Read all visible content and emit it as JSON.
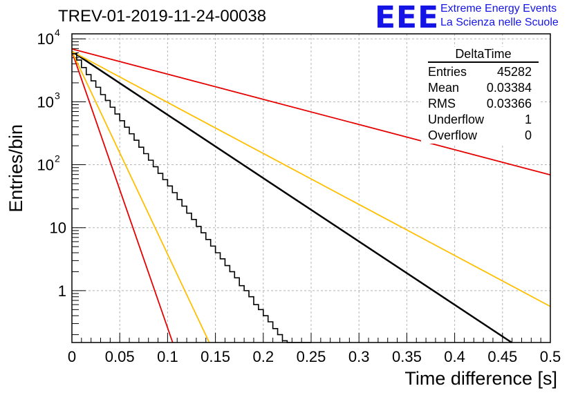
{
  "title": "TREV-01-2019-11-24-00038",
  "logo": {
    "mark": "EEE",
    "line1": "Extreme Energy Events",
    "line2": "La Scienza nelle Scuole"
  },
  "stats": {
    "name": "DeltaTime",
    "rows": [
      {
        "label": "Entries",
        "value": "45282"
      },
      {
        "label": "Mean",
        "value": "0.03384"
      },
      {
        "label": "RMS",
        "value": "0.03366"
      },
      {
        "label": "Underflow",
        "value": "1"
      },
      {
        "label": "Overflow",
        "value": "0"
      }
    ]
  },
  "colors": {
    "histogram": "#000000",
    "fit": "#000000",
    "red_curve": "#e60000",
    "orange_curve": "#ffbf00",
    "grid": "#b4b4b4"
  },
  "chart_data": {
    "type": "histogram",
    "xlabel": "Time difference [s]",
    "ylabel": "Entries/bin",
    "xlim": [
      0,
      0.5
    ],
    "ylim": [
      0.15,
      12000
    ],
    "yscale": "log",
    "grid": true,
    "x_ticks": [
      "0",
      "0.05",
      "0.1",
      "0.15",
      "0.2",
      "0.25",
      "0.3",
      "0.35",
      "0.4",
      "0.45",
      "0.5"
    ],
    "y_ticks": [
      {
        "value": 1,
        "label": "1"
      },
      {
        "value": 10,
        "label": "10"
      },
      {
        "value": 100,
        "label": "10",
        "exp": "2"
      },
      {
        "value": 1000,
        "label": "10",
        "exp": "3"
      },
      {
        "value": 10000,
        "label": "10",
        "exp": "4"
      }
    ],
    "bin_width": 0.005,
    "histogram": [
      5800,
      4600,
      3500,
      2700,
      2150,
      1700,
      1300,
      1050,
      820,
      640,
      500,
      395,
      310,
      245,
      190,
      150,
      118,
      93,
      73,
      58,
      46,
      36,
      28,
      22,
      17,
      13.5,
      10.5,
      8.3,
      6.5,
      5.1,
      4.0,
      3.2,
      2.5,
      2.0,
      1.6,
      1.2,
      1.0,
      0.8,
      0.6,
      0.5,
      0.4,
      0.32,
      0.25,
      0.2,
      0.16,
      0.13,
      0.1,
      0.08,
      0.06,
      0.05
    ],
    "lines": [
      {
        "label": "fit",
        "color": "#000000",
        "y0": 6300,
        "slope_per_s": -10.06
      },
      {
        "label": "red_steep",
        "color": "#e60000",
        "y0": 6300,
        "slope_per_s": -43.9
      },
      {
        "label": "orange_steep",
        "color": "#ffbf00",
        "y0": 6300,
        "slope_per_s": -32.2
      },
      {
        "label": "red_shallow",
        "color": "#e60000",
        "y0": 6900,
        "slope_per_s": -4.0
      },
      {
        "label": "orange_shallow",
        "color": "#ffbf00",
        "y0": 6300,
        "slope_per_s": -8.1
      }
    ]
  }
}
